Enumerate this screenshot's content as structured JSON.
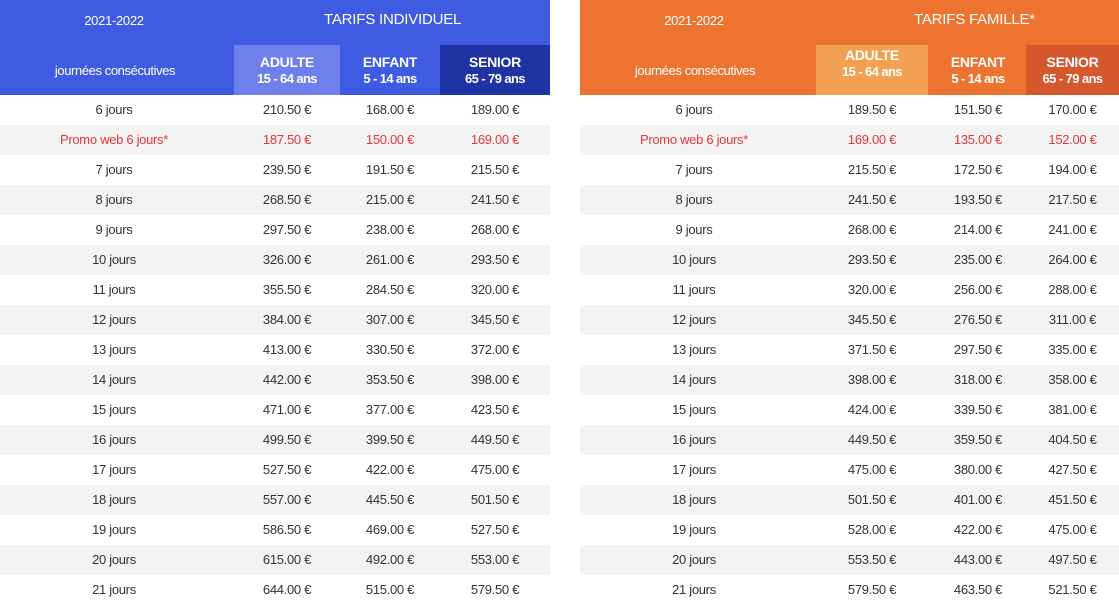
{
  "colors": {
    "individual_band": "#3f5be2",
    "individual_adult": "#6f80ec",
    "individual_senior": "#1f33a4",
    "family_band": "#ec7430",
    "family_adult": "#f2a152",
    "family_senior": "#d4582c",
    "promo_text": "#e0383b",
    "alt_row": "#f3f3f3"
  },
  "individual": {
    "season": "2021-2022",
    "title": "TARIFS INDIVIDUEL",
    "days_header": "journées consécutives",
    "columns": [
      {
        "name": "ADULTE",
        "range": "15 - 64 ans"
      },
      {
        "name": "ENFANT",
        "range": "5 - 14 ans"
      },
      {
        "name": "SENIOR",
        "range": "65 - 79 ans"
      }
    ],
    "rows": [
      {
        "label": "6 jours",
        "adult": "210.50 €",
        "child": "168.00 €",
        "senior": "189.00 €"
      },
      {
        "label": "Promo web 6 jours*",
        "adult": "187.50 €",
        "child": "150.00 €",
        "senior": "169.00 €",
        "promo": true
      },
      {
        "label": "7 jours",
        "adult": "239.50 €",
        "child": "191.50 €",
        "senior": "215.50 €"
      },
      {
        "label": "8 jours",
        "adult": "268.50 €",
        "child": "215.00 €",
        "senior": "241.50 €"
      },
      {
        "label": "9 jours",
        "adult": "297.50 €",
        "child": "238.00 €",
        "senior": "268.00 €"
      },
      {
        "label": "10 jours",
        "adult": "326.00 €",
        "child": "261.00 €",
        "senior": "293.50 €"
      },
      {
        "label": "11 jours",
        "adult": "355.50 €",
        "child": "284.50 €",
        "senior": "320.00 €"
      },
      {
        "label": "12 jours",
        "adult": "384.00 €",
        "child": "307.00 €",
        "senior": "345.50 €"
      },
      {
        "label": "13 jours",
        "adult": "413.00 €",
        "child": "330.50 €",
        "senior": "372.00 €"
      },
      {
        "label": "14 jours",
        "adult": "442.00 €",
        "child": "353.50 €",
        "senior": "398.00 €"
      },
      {
        "label": "15 jours",
        "adult": "471.00 €",
        "child": "377.00 €",
        "senior": "423.50 €"
      },
      {
        "label": "16 jours",
        "adult": "499.50 €",
        "child": "399.50 €",
        "senior": "449.50 €"
      },
      {
        "label": "17 jours",
        "adult": "527.50 €",
        "child": "422.00 €",
        "senior": "475.00 €"
      },
      {
        "label": "18 jours",
        "adult": "557.00 €",
        "child": "445.50 €",
        "senior": "501.50 €"
      },
      {
        "label": "19 jours",
        "adult": "586.50 €",
        "child": "469.00 €",
        "senior": "527.50 €"
      },
      {
        "label": "20 jours",
        "adult": "615.00 €",
        "child": "492.00 €",
        "senior": "553.00 €"
      },
      {
        "label": "21 jours",
        "adult": "644.00 €",
        "child": "515.00 €",
        "senior": "579.50 €"
      }
    ]
  },
  "family": {
    "season": "2021-2022",
    "title": "TARIFS FAMILLE*",
    "days_header": "journées consécutives",
    "columns": [
      {
        "name": "ADULTE",
        "range": "15 - 64 ans"
      },
      {
        "name": "ENFANT",
        "range": "5 - 14 ans"
      },
      {
        "name": "SENIOR",
        "range": "65 - 79 ans"
      }
    ],
    "rows": [
      {
        "label": "6 jours",
        "adult": "189.50 €",
        "child": "151.50 €",
        "senior": "170.00 €"
      },
      {
        "label": "Promo web 6 jours*",
        "adult": "169.00 €",
        "child": "135.00 €",
        "senior": "152.00 €",
        "promo": true
      },
      {
        "label": "7 jours",
        "adult": "215.50 €",
        "child": "172.50 €",
        "senior": "194.00 €"
      },
      {
        "label": "8 jours",
        "adult": "241.50 €",
        "child": "193.50 €",
        "senior": "217.50 €"
      },
      {
        "label": "9 jours",
        "adult": "268.00 €",
        "child": "214.00 €",
        "senior": "241.00 €"
      },
      {
        "label": "10 jours",
        "adult": "293.50 €",
        "child": "235.00 €",
        "senior": "264.00 €"
      },
      {
        "label": "11 jours",
        "adult": "320.00 €",
        "child": "256.00 €",
        "senior": "288.00 €"
      },
      {
        "label": "12 jours",
        "adult": "345.50 €",
        "child": "276.50 €",
        "senior": "311.00 €"
      },
      {
        "label": "13 jours",
        "adult": "371.50 €",
        "child": "297.50 €",
        "senior": "335.00 €"
      },
      {
        "label": "14 jours",
        "adult": "398.00 €",
        "child": "318.00 €",
        "senior": "358.00 €"
      },
      {
        "label": "15 jours",
        "adult": "424.00 €",
        "child": "339.50 €",
        "senior": "381.00 €"
      },
      {
        "label": "16 jours",
        "adult": "449.50 €",
        "child": "359.50 €",
        "senior": "404.50 €"
      },
      {
        "label": "17 jours",
        "adult": "475.00 €",
        "child": "380.00 €",
        "senior": "427.50 €"
      },
      {
        "label": "18 jours",
        "adult": "501.50 €",
        "child": "401.00 €",
        "senior": "451.50 €"
      },
      {
        "label": "19 jours",
        "adult": "528.00 €",
        "child": "422.00 €",
        "senior": "475.00 €"
      },
      {
        "label": "20 jours",
        "adult": "553.50 €",
        "child": "443.00 €",
        "senior": "497.50 €"
      },
      {
        "label": "21 jours",
        "adult": "579.50 €",
        "child": "463.50 €",
        "senior": "521.50 €"
      }
    ]
  }
}
